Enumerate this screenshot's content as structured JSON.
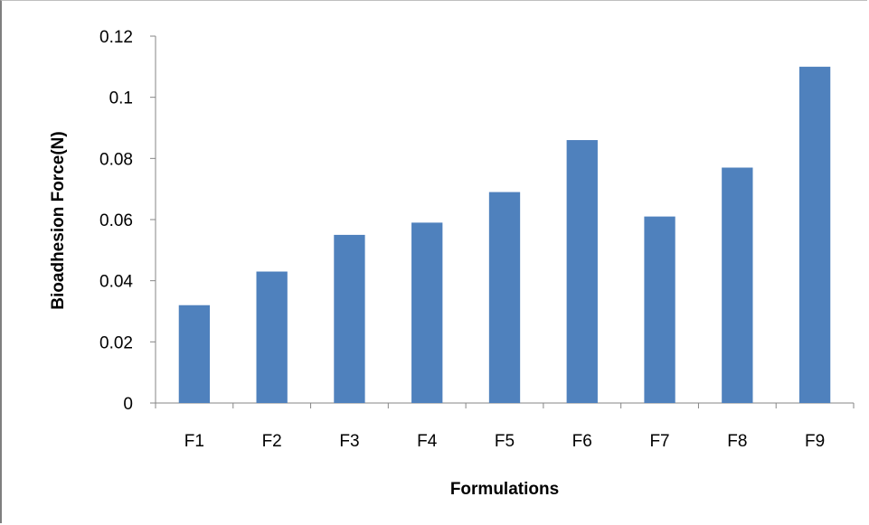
{
  "chart_data": {
    "type": "bar",
    "title": "",
    "xlabel": "Formulations",
    "ylabel": "Bioadhesion Force(N)",
    "categories": [
      "F1",
      "F2",
      "F3",
      "F4",
      "F5",
      "F6",
      "F7",
      "F8",
      "F9"
    ],
    "values": [
      0.032,
      0.043,
      0.055,
      0.059,
      0.069,
      0.086,
      0.061,
      0.077,
      0.11
    ],
    "ylim": [
      0,
      0.12
    ],
    "yticks": [
      "0",
      "0.02",
      "0.04",
      "0.06",
      "0.08",
      "0.1",
      "0.12"
    ],
    "grid": false,
    "legend": "none",
    "bar_color": "#4f81bd"
  }
}
